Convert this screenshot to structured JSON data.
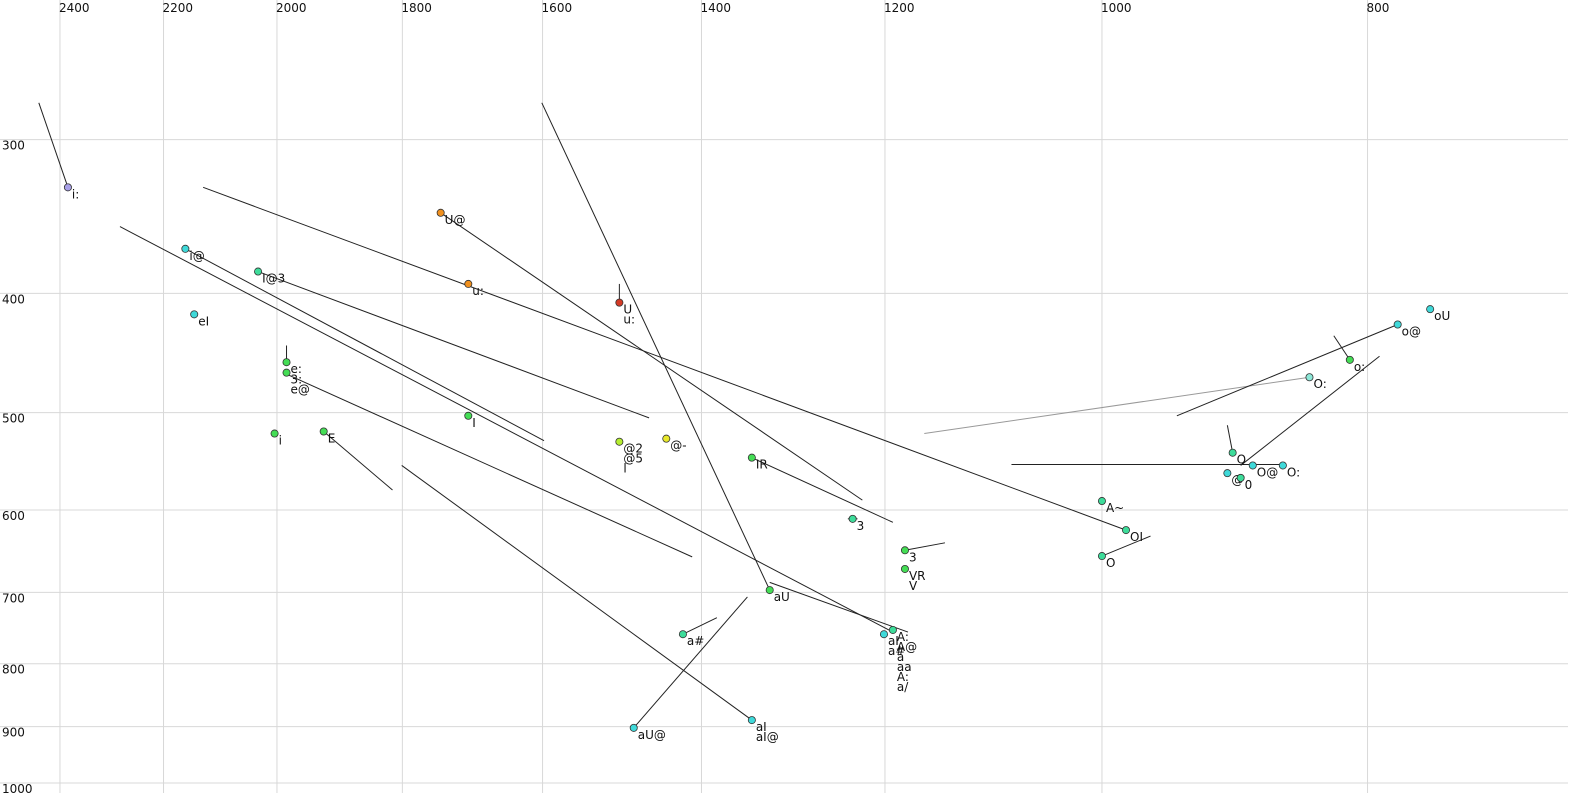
{
  "chart_data": {
    "type": "scatter",
    "x_scale": "log",
    "y_scale": "log",
    "grid": true,
    "xlim": [
      2524,
      676
    ],
    "ylim": [
      231,
      1019
    ],
    "xticks": [
      2400,
      2200,
      2000,
      1800,
      1600,
      1400,
      1200,
      1000,
      800
    ],
    "yticks": [
      300,
      400,
      500,
      600,
      700,
      800,
      900,
      1000
    ],
    "points": [
      {
        "x": 2384,
        "y": 328,
        "labels": [
          "i:"
        ],
        "color": "#a8a0e8"
      },
      {
        "x": 2160,
        "y": 368,
        "labels": [
          "i@"
        ],
        "color": "#3fd9d9"
      },
      {
        "x": 2144,
        "y": 416,
        "labels": [
          "eI"
        ],
        "color": "#3fd9d9"
      },
      {
        "x": 2032,
        "y": 384,
        "labels": [
          "I@3"
        ],
        "color": "#3ddc9a"
      },
      {
        "x": 1984,
        "y": 455,
        "labels": [
          "e:"
        ],
        "color": "#44dd55"
      },
      {
        "x": 1984,
        "y": 464,
        "labels": [
          "3:",
          "e@"
        ],
        "color": "#44dd55"
      },
      {
        "x": 2004,
        "y": 520,
        "labels": [
          "i"
        ],
        "color": "#44dd55"
      },
      {
        "x": 1923,
        "y": 518,
        "labels": [
          "E"
        ],
        "color": "#44dd55"
      },
      {
        "x": 1743,
        "y": 344,
        "labels": [
          "U@"
        ],
        "color": "#f0901e"
      },
      {
        "x": 1703,
        "y": 393,
        "labels": [
          "u:"
        ],
        "color": "#f0901e"
      },
      {
        "x": 1703,
        "y": 503,
        "labels": [
          "I"
        ],
        "color": "#44dd55"
      },
      {
        "x": 1500,
        "y": 407,
        "labels": [
          "U",
          "u:"
        ],
        "color": "#d43a25"
      },
      {
        "x": 1500,
        "y": 528,
        "labels": [
          "@2",
          "@5",
          "l"
        ],
        "color": "#b5ee30"
      },
      {
        "x": 1442,
        "y": 525,
        "labels": [
          "@-"
        ],
        "color": "#e8e82a"
      },
      {
        "x": 1342,
        "y": 544,
        "labels": [
          "IR"
        ],
        "color": "#44dd55"
      },
      {
        "x": 1233,
        "y": 610,
        "labels": [
          "3"
        ],
        "color": "#3ddc9a"
      },
      {
        "x": 1180,
        "y": 647,
        "labels": [
          "3"
        ],
        "color": "#44dd55"
      },
      {
        "x": 1180,
        "y": 670,
        "labels": [
          "VR",
          "V"
        ],
        "color": "#44dd55"
      },
      {
        "x": 1322,
        "y": 697,
        "labels": [
          "aU"
        ],
        "color": "#44dd55"
      },
      {
        "x": 1422,
        "y": 757,
        "labels": [
          "a#"
        ],
        "color": "#3ddc9a"
      },
      {
        "x": 1482,
        "y": 902,
        "labels": [
          "aU@"
        ],
        "color": "#3fd9d9"
      },
      {
        "x": 1342,
        "y": 889,
        "labels": [
          "aI",
          "aI@"
        ],
        "color": "#3fd9d9"
      },
      {
        "x": 1201,
        "y": 757,
        "labels": [
          "aI",
          "a#"
        ],
        "color": "#3fd9d9"
      },
      {
        "x": 1192,
        "y": 751,
        "labels": [
          "A:",
          "A@",
          "a",
          "aa",
          "A:",
          "a/"
        ],
        "color": "#3ddc9a"
      },
      {
        "x": 1000,
        "y": 590,
        "labels": [
          "A~"
        ],
        "color": "#3ddc9a"
      },
      {
        "x": 980,
        "y": 623,
        "labels": [
          "OI"
        ],
        "color": "#3ddc9a"
      },
      {
        "x": 1000,
        "y": 654,
        "labels": [
          "O"
        ],
        "color": "#3ddc9a"
      },
      {
        "x": 840,
        "y": 468,
        "labels": [
          "O:"
        ],
        "color": "#8de8d8"
      },
      {
        "x": 780,
        "y": 424,
        "labels": [
          "o@"
        ],
        "color": "#3fd9d9"
      },
      {
        "x": 759,
        "y": 412,
        "labels": [
          "oU"
        ],
        "color": "#3fd9d9"
      },
      {
        "x": 812,
        "y": 453,
        "labels": [
          "o:"
        ],
        "color": "#44dd55"
      },
      {
        "x": 896,
        "y": 539,
        "labels": [
          "Q"
        ],
        "color": "#3ddc9a"
      },
      {
        "x": 900,
        "y": 560,
        "labels": [
          "@"
        ],
        "color": "#3fd9d9"
      },
      {
        "x": 890,
        "y": 565,
        "labels": [
          "0"
        ],
        "color": "#3ddc9a"
      },
      {
        "x": 881,
        "y": 552,
        "labels": [
          "O@"
        ],
        "color": "#3fd9d9"
      },
      {
        "x": 859,
        "y": 552,
        "labels": [
          "O:"
        ],
        "color": "#3fd9d9"
      }
    ],
    "trajectories": [
      {
        "x": [
          2443,
          2384
        ],
        "y": [
          280,
          328
        ],
        "color": "#222222"
      },
      {
        "x": [
          2282,
          1192
        ],
        "y": [
          353,
          754
        ],
        "color": "#222222"
      },
      {
        "x": [
          2160,
          1598
        ],
        "y": [
          368,
          527
        ],
        "color": "#222222"
      },
      {
        "x": [
          2032,
          1463
        ],
        "y": [
          384,
          505
        ],
        "color": "#222222"
      },
      {
        "x": [
          2128,
          980
        ],
        "y": [
          328,
          623
        ],
        "color": "#222222"
      },
      {
        "x": [
          1743,
          1223
        ],
        "y": [
          344,
          589
        ],
        "color": "#222222"
      },
      {
        "x": [
          1601,
          1322
        ],
        "y": [
          280,
          697
        ],
        "color": "#222222"
      },
      {
        "x": [
          1981,
          1411
        ],
        "y": [
          466,
          655
        ],
        "color": "#222222"
      },
      {
        "x": [
          1984,
          1984
        ],
        "y": [
          441,
          455
        ],
        "color": "#222222"
      },
      {
        "x": [
          1923,
          1815
        ],
        "y": [
          518,
          578
        ],
        "color": "#222222"
      },
      {
        "x": [
          1801,
          1342
        ],
        "y": [
          552,
          889
        ],
        "color": "#222222"
      },
      {
        "x": [
          1482,
          1347
        ],
        "y": [
          902,
          706
        ],
        "color": "#222222"
      },
      {
        "x": [
          1422,
          1382
        ],
        "y": [
          757,
          734
        ],
        "color": "#222222"
      },
      {
        "x": [
          1342,
          1192
        ],
        "y": [
          544,
          614
        ],
        "color": "#222222"
      },
      {
        "x": [
          1180,
          1141
        ],
        "y": [
          647,
          638
        ],
        "color": "#222222"
      },
      {
        "x": [
          1322,
          1177
        ],
        "y": [
          687,
          754
        ],
        "color": "#222222"
      },
      {
        "x": [
          1000,
          960
        ],
        "y": [
          654,
          630
        ],
        "color": "#222222"
      },
      {
        "x": [
          1161,
          840
        ],
        "y": [
          520,
          468
        ],
        "color": "#999999"
      },
      {
        "x": [
          939,
          780
        ],
        "y": [
          503,
          424
        ],
        "color": "#222222"
      },
      {
        "x": [
          1079,
          859
        ],
        "y": [
          551,
          551
        ],
        "color": "#222222"
      },
      {
        "x": [
          890,
          792
        ],
        "y": [
          552,
          450
        ],
        "color": "#222222"
      },
      {
        "x": [
          823,
          812
        ],
        "y": [
          433,
          453
        ],
        "color": "#222222"
      },
      {
        "x": [
          900,
          896
        ],
        "y": [
          512,
          539
        ],
        "color": "#222222"
      },
      {
        "x": [
          1500,
          1500
        ],
        "y": [
          393,
          407
        ],
        "color": "#222222"
      },
      {
        "x": [
          1238,
          1228
        ],
        "y": [
          610,
          610
        ],
        "color": "#222222"
      }
    ]
  }
}
